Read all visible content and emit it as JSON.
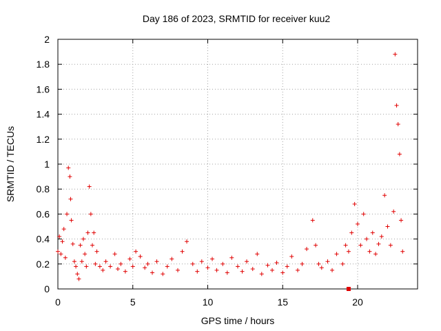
{
  "chart_data": {
    "type": "scatter",
    "title": "Day 186 of 2023, SRMTID for receiver kuu2",
    "xlabel": "GPS time / hours",
    "ylabel": "SRMTID / TECUs",
    "xlim": [
      0,
      24
    ],
    "ylim": [
      0,
      2
    ],
    "xticks": [
      0,
      5,
      10,
      15,
      20
    ],
    "xtick_labels": [
      "0",
      "5",
      "10",
      "15",
      "20"
    ],
    "yticks": [
      0,
      0.2,
      0.4,
      0.6,
      0.8,
      1,
      1.2,
      1.4,
      1.6,
      1.8,
      2
    ],
    "ytick_labels": [
      "0",
      "0.2",
      "0.4",
      "0.6",
      "0.8",
      "1",
      "1.2",
      "1.4",
      "1.6",
      "1.8",
      "2"
    ],
    "grid": true,
    "marker": "+",
    "marker_color": "#e00000",
    "series": [
      {
        "name": "SRMTID",
        "x": [
          0.0,
          0.1,
          0.2,
          0.3,
          0.4,
          0.5,
          0.6,
          0.7,
          0.8,
          0.85,
          0.9,
          1.0,
          1.1,
          1.2,
          1.3,
          1.4,
          1.5,
          1.6,
          1.7,
          1.8,
          1.9,
          2.0,
          2.1,
          2.2,
          2.3,
          2.4,
          2.5,
          2.6,
          2.8,
          3.0,
          3.2,
          3.5,
          3.8,
          4.0,
          4.2,
          4.5,
          4.8,
          5.0,
          5.2,
          5.5,
          5.8,
          6.0,
          6.3,
          6.6,
          7.0,
          7.3,
          7.6,
          8.0,
          8.3,
          8.6,
          9.0,
          9.3,
          9.6,
          10.0,
          10.3,
          10.6,
          11.0,
          11.3,
          11.6,
          12.0,
          12.3,
          12.6,
          13.0,
          13.3,
          13.6,
          14.0,
          14.3,
          14.6,
          15.0,
          15.3,
          15.6,
          16.0,
          16.3,
          16.6,
          17.0,
          17.2,
          17.4,
          17.6,
          18.0,
          18.3,
          18.6,
          19.0,
          19.2,
          19.4,
          19.6,
          19.8,
          20.0,
          20.2,
          20.4,
          20.6,
          20.8,
          21.0,
          21.2,
          21.4,
          21.6,
          21.8,
          22.0,
          22.2,
          22.4,
          22.5,
          22.6,
          22.7,
          22.8,
          22.9,
          23.0
        ],
        "y": [
          0.3,
          0.42,
          0.28,
          0.38,
          0.48,
          0.25,
          0.6,
          0.97,
          0.9,
          0.72,
          0.55,
          0.36,
          0.22,
          0.18,
          0.12,
          0.08,
          0.35,
          0.22,
          0.4,
          0.28,
          0.18,
          0.45,
          0.82,
          0.6,
          0.35,
          0.45,
          0.2,
          0.3,
          0.18,
          0.15,
          0.22,
          0.18,
          0.28,
          0.16,
          0.2,
          0.14,
          0.24,
          0.18,
          0.3,
          0.26,
          0.17,
          0.2,
          0.13,
          0.22,
          0.12,
          0.18,
          0.24,
          0.15,
          0.3,
          0.38,
          0.2,
          0.14,
          0.22,
          0.17,
          0.24,
          0.15,
          0.2,
          0.13,
          0.25,
          0.18,
          0.14,
          0.22,
          0.16,
          0.28,
          0.12,
          0.19,
          0.15,
          0.21,
          0.13,
          0.18,
          0.26,
          0.15,
          0.2,
          0.32,
          0.55,
          0.35,
          0.2,
          0.17,
          0.22,
          0.15,
          0.28,
          0.2,
          0.35,
          0.3,
          0.45,
          0.68,
          0.52,
          0.35,
          0.6,
          0.4,
          0.3,
          0.45,
          0.28,
          0.36,
          0.42,
          0.75,
          0.5,
          0.35,
          0.62,
          1.88,
          1.47,
          1.32,
          1.08,
          0.55,
          0.3
        ]
      }
    ],
    "annotations": [
      {
        "type": "square",
        "x": 19.4,
        "y": 0.0
      }
    ]
  }
}
